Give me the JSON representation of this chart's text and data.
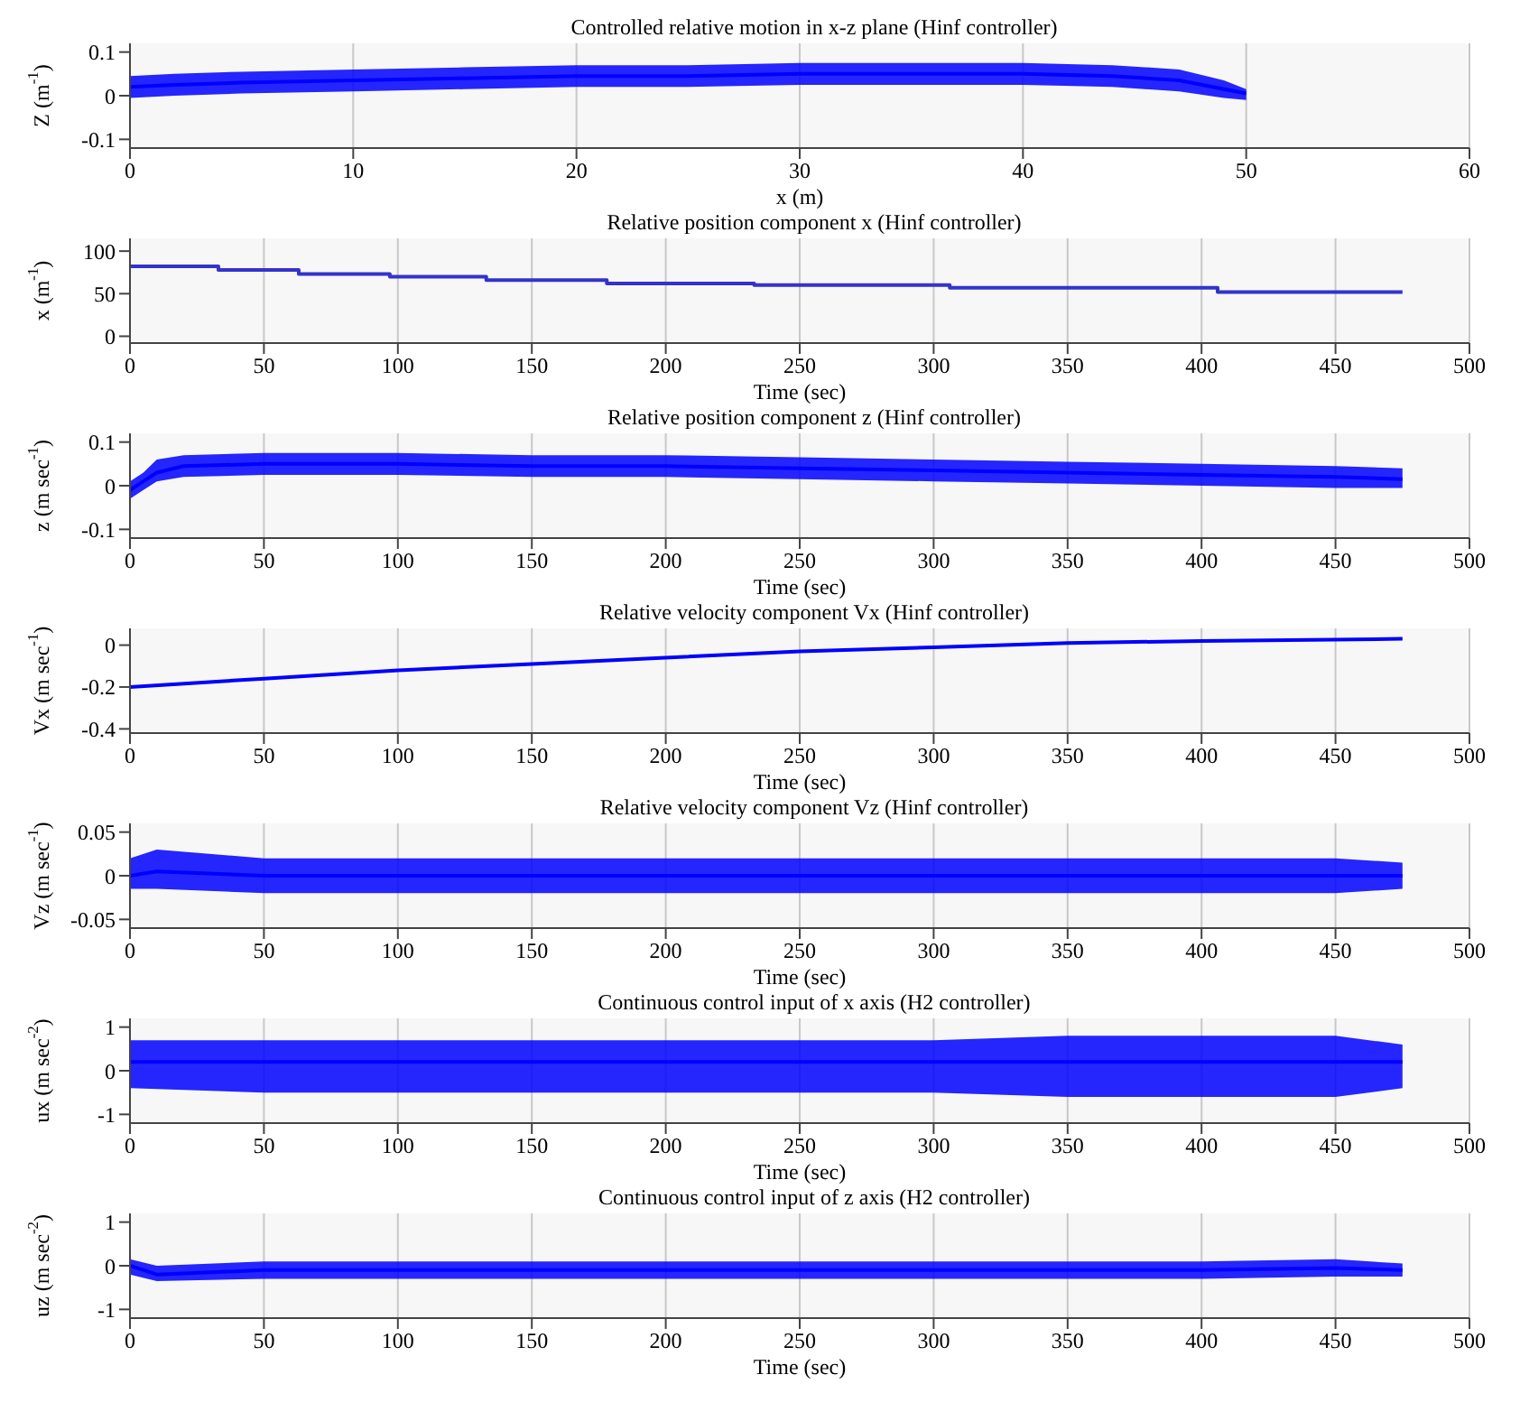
{
  "chart_data": [
    {
      "type": "line",
      "title": "Controlled relative motion in x-z plane (Hinf controller)",
      "xlabel": "x (m)",
      "ylabel": "Z (m$^{-1}$)",
      "xlim": [
        0,
        60
      ],
      "xticks": [
        0,
        10,
        20,
        30,
        40,
        50,
        60
      ],
      "ylim": [
        -0.12,
        0.12
      ],
      "yticks": [
        -0.1,
        0,
        0.1
      ],
      "grid": "x",
      "x": [
        0,
        2,
        5,
        10,
        15,
        20,
        25,
        30,
        35,
        40,
        44,
        47,
        49,
        50
      ],
      "series": [
        {
          "color": "#0000ff",
          "values": [
            0.02,
            0.025,
            0.03,
            0.035,
            0.04,
            0.045,
            0.045,
            0.05,
            0.05,
            0.05,
            0.045,
            0.035,
            0.015,
            0.005
          ],
          "lower": [
            -0.005,
            0,
            0.005,
            0.01,
            0.015,
            0.02,
            0.02,
            0.025,
            0.025,
            0.025,
            0.02,
            0.01,
            -0.005,
            -0.01
          ],
          "upper": [
            0.045,
            0.05,
            0.055,
            0.06,
            0.065,
            0.07,
            0.07,
            0.075,
            0.075,
            0.075,
            0.07,
            0.06,
            0.035,
            0.015
          ]
        }
      ]
    },
    {
      "type": "step",
      "title": "Relative position component x (Hinf controller)",
      "xlabel": "Time (sec)",
      "ylabel": "x (m$^{-1}$)",
      "xlim": [
        0,
        500
      ],
      "xticks": [
        0,
        50,
        100,
        150,
        200,
        250,
        300,
        350,
        400,
        450,
        500
      ],
      "ylim": [
        -8,
        115
      ],
      "yticks": [
        0,
        50,
        100
      ],
      "grid": "x",
      "x": [
        0,
        33,
        63,
        97,
        133,
        178,
        233,
        306,
        406,
        475
      ],
      "series": [
        {
          "color": "#3333cc",
          "values": [
            82,
            78,
            73,
            70,
            66,
            62,
            60,
            57,
            52,
            52
          ]
        }
      ]
    },
    {
      "type": "line",
      "title": "Relative position component z (Hinf controller)",
      "xlabel": "Time (sec)",
      "ylabel": "z (m sec$^{-1}$)",
      "xlim": [
        0,
        500
      ],
      "xticks": [
        0,
        50,
        100,
        150,
        200,
        250,
        300,
        350,
        400,
        450,
        500
      ],
      "ylim": [
        -0.12,
        0.12
      ],
      "yticks": [
        -0.1,
        0,
        0.1
      ],
      "grid": "x",
      "x": [
        0,
        5,
        10,
        20,
        50,
        100,
        150,
        200,
        250,
        300,
        350,
        400,
        450,
        475
      ],
      "series": [
        {
          "color": "#0000ff",
          "values": [
            -0.01,
            0.01,
            0.03,
            0.045,
            0.05,
            0.05,
            0.045,
            0.045,
            0.04,
            0.035,
            0.03,
            0.025,
            0.02,
            0.015
          ],
          "lower": [
            -0.03,
            -0.01,
            0.01,
            0.02,
            0.025,
            0.025,
            0.02,
            0.02,
            0.015,
            0.01,
            0.005,
            0,
            -0.005,
            -0.005
          ],
          "upper": [
            0.01,
            0.03,
            0.06,
            0.07,
            0.075,
            0.075,
            0.07,
            0.07,
            0.065,
            0.06,
            0.055,
            0.05,
            0.045,
            0.04
          ]
        }
      ]
    },
    {
      "type": "line",
      "title": "Relative velocity component Vx (Hinf controller)",
      "xlabel": "Time (sec)",
      "ylabel": "Vx (m sec$^{-1}$)",
      "xlim": [
        0,
        500
      ],
      "xticks": [
        0,
        50,
        100,
        150,
        200,
        250,
        300,
        350,
        400,
        450,
        500
      ],
      "ylim": [
        -0.42,
        0.08
      ],
      "yticks": [
        -0.4,
        -0.2,
        0
      ],
      "grid": "x",
      "x": [
        0,
        50,
        100,
        150,
        200,
        250,
        300,
        350,
        400,
        475
      ],
      "series": [
        {
          "color": "#0000ff",
          "values": [
            -0.2,
            -0.16,
            -0.12,
            -0.09,
            -0.06,
            -0.03,
            -0.01,
            0.01,
            0.02,
            0.03
          ]
        }
      ]
    },
    {
      "type": "line",
      "title": "Relative velocity component Vz (Hinf controller)",
      "xlabel": "Time (sec)",
      "ylabel": "Vz (m sec$^{-1}$)",
      "xlim": [
        0,
        500
      ],
      "xticks": [
        0,
        50,
        100,
        150,
        200,
        250,
        300,
        350,
        400,
        450,
        500
      ],
      "ylim": [
        -0.06,
        0.06
      ],
      "yticks": [
        -0.05,
        0,
        0.05
      ],
      "grid": "x",
      "x": [
        0,
        10,
        50,
        100,
        150,
        200,
        250,
        300,
        350,
        400,
        450,
        475
      ],
      "series": [
        {
          "color": "#0000ff",
          "values": [
            0,
            0.005,
            0,
            0,
            0,
            0,
            0,
            0,
            0,
            0,
            0,
            0
          ],
          "lower": [
            -0.015,
            -0.015,
            -0.02,
            -0.02,
            -0.02,
            -0.02,
            -0.02,
            -0.02,
            -0.02,
            -0.02,
            -0.02,
            -0.015
          ],
          "upper": [
            0.02,
            0.03,
            0.02,
            0.02,
            0.02,
            0.02,
            0.02,
            0.02,
            0.02,
            0.02,
            0.02,
            0.015
          ]
        }
      ]
    },
    {
      "type": "line",
      "title": "Continuous control input of x axis (H2 controller)",
      "xlabel": "Time (sec)",
      "ylabel": "ux (m sec$^{-2}$)",
      "xlim": [
        0,
        500
      ],
      "xticks": [
        0,
        50,
        100,
        150,
        200,
        250,
        300,
        350,
        400,
        450,
        500
      ],
      "ylim": [
        -1.2,
        1.2
      ],
      "yticks": [
        -1,
        0,
        1
      ],
      "grid": "x",
      "x": [
        0,
        50,
        100,
        150,
        200,
        250,
        300,
        350,
        400,
        450,
        475
      ],
      "series": [
        {
          "color": "#0000ff",
          "values": [
            0.2,
            0.2,
            0.2,
            0.2,
            0.2,
            0.2,
            0.2,
            0.2,
            0.2,
            0.2,
            0.2
          ],
          "lower": [
            -0.4,
            -0.5,
            -0.5,
            -0.5,
            -0.5,
            -0.5,
            -0.5,
            -0.6,
            -0.6,
            -0.6,
            -0.4
          ],
          "upper": [
            0.7,
            0.7,
            0.7,
            0.7,
            0.7,
            0.7,
            0.7,
            0.8,
            0.8,
            0.8,
            0.6
          ]
        }
      ]
    },
    {
      "type": "line",
      "title": "Continuous control input of z axis (H2 controller)",
      "xlabel": "Time (sec)",
      "ylabel": "uz (m sec$^{-2}$)",
      "xlim": [
        0,
        500
      ],
      "xticks": [
        0,
        50,
        100,
        150,
        200,
        250,
        300,
        350,
        400,
        450,
        500
      ],
      "ylim": [
        -1.2,
        1.2
      ],
      "yticks": [
        -1,
        0,
        1
      ],
      "grid": "x",
      "x": [
        0,
        10,
        50,
        100,
        150,
        200,
        250,
        300,
        350,
        400,
        450,
        475
      ],
      "series": [
        {
          "color": "#0000ff",
          "values": [
            0,
            -0.2,
            -0.1,
            -0.1,
            -0.1,
            -0.1,
            -0.1,
            -0.1,
            -0.1,
            -0.1,
            -0.05,
            -0.1
          ],
          "lower": [
            -0.2,
            -0.35,
            -0.3,
            -0.3,
            -0.3,
            -0.3,
            -0.3,
            -0.3,
            -0.3,
            -0.3,
            -0.25,
            -0.25
          ],
          "upper": [
            0.15,
            0,
            0.1,
            0.1,
            0.1,
            0.1,
            0.1,
            0.1,
            0.1,
            0.1,
            0.15,
            0.05
          ]
        }
      ]
    }
  ]
}
